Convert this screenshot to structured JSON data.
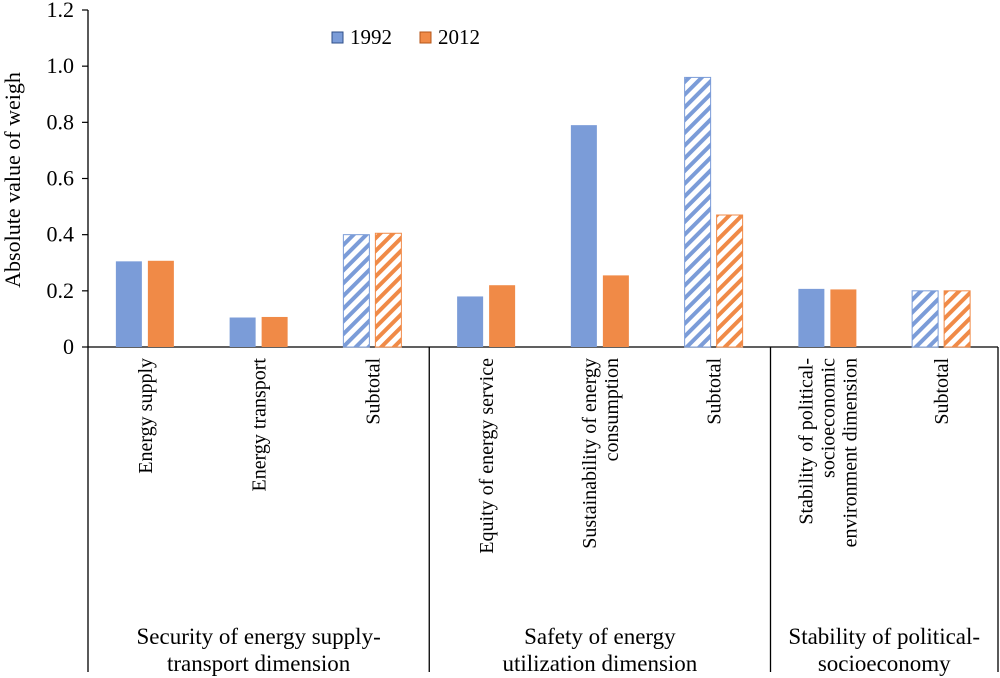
{
  "chart_data": {
    "type": "bar",
    "ylabel": "Absolute value of weigh",
    "ylim": [
      0,
      1.2
    ],
    "yticks": [
      "0",
      "0.2",
      "0.4",
      "0.6",
      "0.8",
      "1.0",
      "1.2"
    ],
    "legend_position": "top-center",
    "colors": {
      "1992": "#7b9cd8",
      "2012": "#f08a47"
    },
    "series": [
      {
        "name": "1992",
        "values": [
          0.305,
          0.105,
          0.4,
          0.18,
          0.79,
          0.96,
          0.207,
          0.2
        ]
      },
      {
        "name": "2012",
        "values": [
          0.307,
          0.107,
          0.405,
          0.22,
          0.255,
          0.47,
          0.205,
          0.2
        ]
      }
    ],
    "categories": [
      [
        "Energy supply"
      ],
      [
        "Energy transport"
      ],
      [
        "Subtotal"
      ],
      [
        "Equity of energy service"
      ],
      [
        "Sustainability of energy",
        "consumption"
      ],
      [
        "Subtotal"
      ],
      [
        "Stability of political-",
        "socioeconomic",
        "environment dimension"
      ],
      [
        "Subtotal"
      ]
    ],
    "subtotal_flags": [
      false,
      false,
      true,
      false,
      false,
      true,
      false,
      true
    ],
    "groups": [
      {
        "label": [
          "Security of energy supply-",
          "transport dimension"
        ],
        "span": [
          0,
          2
        ]
      },
      {
        "label": [
          "Safety of energy",
          "utilization dimension"
        ],
        "span": [
          3,
          5
        ]
      },
      {
        "label": [
          "Stability of political-",
          "socioeconomy"
        ],
        "span": [
          6,
          7
        ]
      }
    ]
  }
}
